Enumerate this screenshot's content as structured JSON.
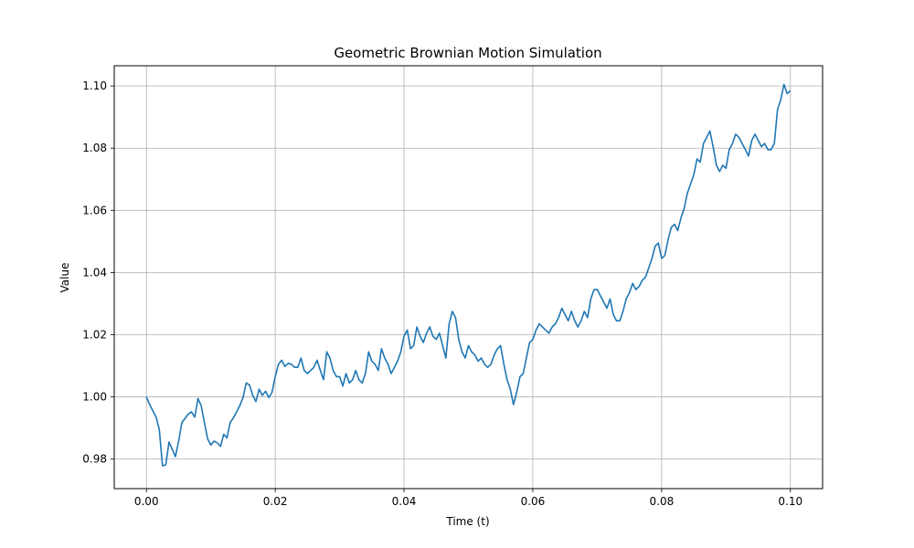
{
  "chart_data": {
    "type": "line",
    "title": "Geometric Brownian Motion Simulation",
    "xlabel": "Time (t)",
    "ylabel": "Value",
    "xlim": [
      -0.005,
      0.105
    ],
    "ylim": [
      0.9705,
      1.1065
    ],
    "xticks": [
      0.0,
      0.02,
      0.04,
      0.06,
      0.08,
      0.1
    ],
    "xtick_labels": [
      "0.00",
      "0.02",
      "0.04",
      "0.06",
      "0.08",
      "0.10"
    ],
    "yticks": [
      0.98,
      1.0,
      1.02,
      1.04,
      1.06,
      1.08,
      1.1
    ],
    "ytick_labels": [
      "0.98",
      "1.00",
      "1.02",
      "1.04",
      "1.06",
      "1.08",
      "1.10"
    ],
    "grid": true,
    "series": [
      {
        "color": "#1f77b4",
        "x": [
          0.0,
          0.0005,
          0.001,
          0.0015,
          0.002,
          0.0025,
          0.003,
          0.0035,
          0.004,
          0.0045,
          0.005,
          0.0055,
          0.006,
          0.0065,
          0.007,
          0.0075,
          0.008,
          0.0085,
          0.009,
          0.0095,
          0.01,
          0.0105,
          0.011,
          0.0115,
          0.012,
          0.0125,
          0.013,
          0.0135,
          0.014,
          0.0145,
          0.015,
          0.0155,
          0.016,
          0.0165,
          0.017,
          0.0175,
          0.018,
          0.0185,
          0.019,
          0.0195,
          0.02,
          0.0205,
          0.021,
          0.0215,
          0.022,
          0.0225,
          0.023,
          0.0235,
          0.024,
          0.0245,
          0.025,
          0.0255,
          0.026,
          0.0265,
          0.027,
          0.0275,
          0.028,
          0.0285,
          0.029,
          0.0295,
          0.03,
          0.0305,
          0.031,
          0.0315,
          0.032,
          0.0325,
          0.033,
          0.0335,
          0.034,
          0.0345,
          0.035,
          0.0355,
          0.036,
          0.0365,
          0.037,
          0.0375,
          0.038,
          0.0385,
          0.039,
          0.0395,
          0.04,
          0.0405,
          0.041,
          0.0415,
          0.042,
          0.0425,
          0.043,
          0.0435,
          0.044,
          0.0445,
          0.045,
          0.0455,
          0.046,
          0.0465,
          0.047,
          0.0475,
          0.048,
          0.0485,
          0.049,
          0.0495,
          0.05,
          0.0505,
          0.051,
          0.0515,
          0.052,
          0.0525,
          0.053,
          0.0535,
          0.054,
          0.0545,
          0.055,
          0.0555,
          0.056,
          0.0565,
          0.057,
          0.0575,
          0.058,
          0.0585,
          0.059,
          0.0595,
          0.06,
          0.0605,
          0.061,
          0.0615,
          0.062,
          0.0625,
          0.063,
          0.0635,
          0.064,
          0.0645,
          0.065,
          0.0655,
          0.066,
          0.0665,
          0.067,
          0.0675,
          0.068,
          0.0685,
          0.069,
          0.0695,
          0.07,
          0.0705,
          0.071,
          0.0715,
          0.072,
          0.0725,
          0.073,
          0.0735,
          0.074,
          0.0745,
          0.075,
          0.0755,
          0.076,
          0.0765,
          0.077,
          0.0775,
          0.078,
          0.0785,
          0.079,
          0.0795,
          0.08,
          0.0805,
          0.081,
          0.0815,
          0.082,
          0.0825,
          0.083,
          0.0835,
          0.084,
          0.0845,
          0.085,
          0.0855,
          0.086,
          0.0865,
          0.087,
          0.0875,
          0.088,
          0.0885,
          0.089,
          0.0895,
          0.09,
          0.0905,
          0.091,
          0.0915,
          0.092,
          0.0925,
          0.093,
          0.0935,
          0.094,
          0.0945,
          0.095,
          0.0955,
          0.096,
          0.0965,
          0.097,
          0.0975,
          0.098,
          0.0985,
          0.099,
          0.0995,
          0.1
        ],
        "y": [
          1.0,
          0.9975,
          0.9955,
          0.9935,
          0.9895,
          0.9778,
          0.9782,
          0.9855,
          0.9832,
          0.9808,
          0.9858,
          0.9918,
          0.9931,
          0.9945,
          0.9952,
          0.9935,
          0.9995,
          0.9972,
          0.9918,
          0.9865,
          0.9845,
          0.9858,
          0.9852,
          0.9841,
          0.988,
          0.9868,
          0.9918,
          0.9932,
          0.9952,
          0.9972,
          0.9998,
          1.0045,
          1.0038,
          1.0005,
          0.9985,
          1.0025,
          1.0005,
          1.0018,
          0.9998,
          1.0015,
          1.0065,
          1.0105,
          1.0118,
          1.0098,
          1.0108,
          1.0105,
          1.0095,
          1.0095,
          1.0125,
          1.0085,
          1.0075,
          1.0085,
          1.0095,
          1.0118,
          1.0085,
          1.0055,
          1.0145,
          1.0125,
          1.0085,
          1.0065,
          1.0065,
          1.0035,
          1.0075,
          1.0045,
          1.0055,
          1.0085,
          1.0055,
          1.0045,
          1.0075,
          1.0145,
          1.0115,
          1.0105,
          1.0085,
          1.0155,
          1.0125,
          1.0105,
          1.0075,
          1.0095,
          1.0115,
          1.0145,
          1.0195,
          1.0215,
          1.0155,
          1.0165,
          1.0225,
          1.0195,
          1.0175,
          1.0205,
          1.0225,
          1.0195,
          1.0185,
          1.0205,
          1.0165,
          1.0125,
          1.0235,
          1.0275,
          1.0255,
          1.0185,
          1.0145,
          1.0125,
          1.0165,
          1.0145,
          1.0135,
          1.0115,
          1.0125,
          1.0105,
          1.0095,
          1.0105,
          1.0135,
          1.0155,
          1.0165,
          1.0105,
          1.0055,
          1.0025,
          0.9975,
          1.0015,
          1.0065,
          1.0075,
          1.0125,
          1.0175,
          1.0185,
          1.0215,
          1.0235,
          1.0225,
          1.0215,
          1.0205,
          1.0225,
          1.0235,
          1.0255,
          1.0285,
          1.0265,
          1.0245,
          1.0275,
          1.0245,
          1.0225,
          1.0245,
          1.0275,
          1.0255,
          1.0315,
          1.0345,
          1.0345,
          1.0325,
          1.0305,
          1.0285,
          1.0315,
          1.0265,
          1.0245,
          1.0245,
          1.0275,
          1.0315,
          1.0335,
          1.0365,
          1.0345,
          1.0355,
          1.0375,
          1.0385,
          1.0415,
          1.0445,
          1.0485,
          1.0495,
          1.0445,
          1.0455,
          1.0505,
          1.0545,
          1.0555,
          1.0535,
          1.0575,
          1.0605,
          1.0655,
          1.0685,
          1.0715,
          1.0765,
          1.0755,
          1.0815,
          1.0835,
          1.0855,
          1.0805,
          1.0745,
          1.0725,
          1.0745,
          1.0735,
          1.0795,
          1.0815,
          1.0845,
          1.0835,
          1.0815,
          1.0795,
          1.0775,
          1.0825,
          1.0845,
          1.0825,
          1.0805,
          1.0815,
          1.0795,
          1.0795,
          1.0815,
          1.0925,
          1.0955,
          1.1005,
          1.0975,
          1.0985
        ]
      }
    ]
  }
}
